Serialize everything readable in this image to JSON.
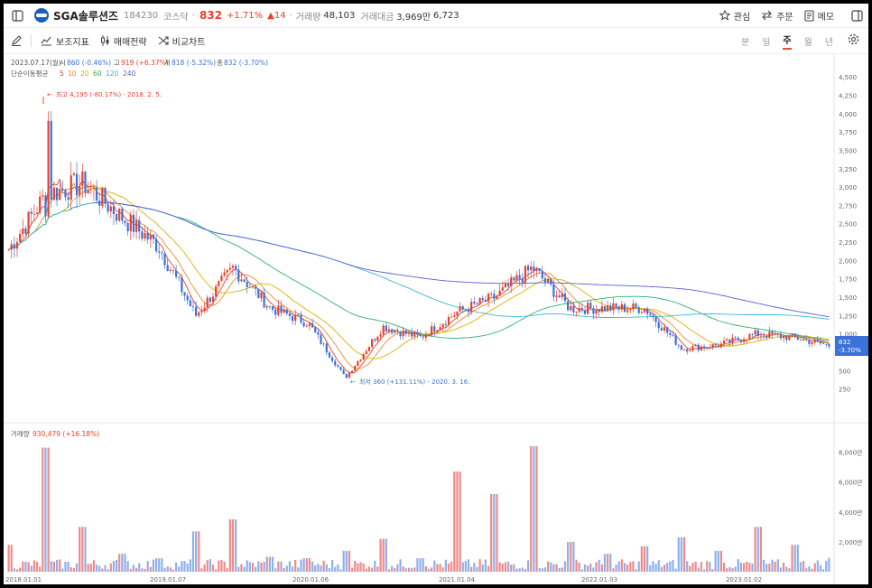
{
  "header": {
    "stock_name": "SGA솔루션즈",
    "code": "184230",
    "market": "코스닥",
    "price": "832",
    "change_pct": "+1.71%",
    "change_abs": "▲14",
    "volume_label": "거래량",
    "volume": "48,103",
    "amount_label": "거래대금",
    "amount": "3,969만",
    "extra": "6,723",
    "watch_label": "관심",
    "order_label": "주문",
    "memo_label": "메모"
  },
  "toolbar": {
    "indicator_label": "보조지표",
    "strategy_label": "매매전략",
    "compare_label": "비교차트",
    "periods": [
      "분",
      "일",
      "주",
      "월",
      "년"
    ],
    "active_period": "주"
  },
  "info": {
    "date": "2023.07.17(월)",
    "open_label": "시",
    "open": "860 (-0.46%)",
    "high_label": "고",
    "high": "919 (+6.37%)",
    "low_label": "저",
    "low": "818 (-5.32%)",
    "close_label": "종",
    "close": "832 (-3.70%)",
    "ma_label": "단순이동평균",
    "ma": [
      {
        "v": "5",
        "color": "#e8412c"
      },
      {
        "v": "10",
        "color": "#f08a24"
      },
      {
        "v": "20",
        "color": "#d8b400"
      },
      {
        "v": "60",
        "color": "#2fb36b"
      },
      {
        "v": "120",
        "color": "#37b7d8"
      },
      {
        "v": "240",
        "color": "#5b5fd6"
      }
    ]
  },
  "annotations": {
    "high": "최고 4,195 (-80.17%) - 2018. 2. 5.",
    "low": "최저 360 (+131.11%) - 2020. 3. 16.",
    "price_tag": "832",
    "price_tag_pct": "-3.70%"
  },
  "volume_info": {
    "label": "거래량",
    "value": "930,479 (+16.18%)"
  },
  "chart_data": [
    {
      "type": "line",
      "title": "",
      "y_ticks": [
        "4,500",
        "4,250",
        "4,000",
        "3,750",
        "3,500",
        "3,250",
        "3,000",
        "2,750",
        "2,500",
        "2,250",
        "2,000",
        "1,750",
        "1,500",
        "1,250",
        "1,000",
        "750",
        "500",
        "250"
      ],
      "x_ticks": [
        "2018.01.01",
        "2019.01.07",
        "2020.01.06",
        "2021.01.04",
        "2022.01.03",
        "2023.01.02"
      ],
      "x": [
        "2018.01",
        "2018.02",
        "2018.04",
        "2018.06",
        "2018.09",
        "2019.01",
        "2019.05",
        "2019.09",
        "2020.01",
        "2020.03",
        "2020.06",
        "2020.10",
        "2021.01",
        "2021.04",
        "2021.06",
        "2021.09",
        "2022.01",
        "2022.04",
        "2022.07",
        "2022.10",
        "2023.01",
        "2023.04",
        "2023.07"
      ],
      "series": [
        {
          "values": [
            2150,
            2900,
            3050,
            2600,
            2200,
            1250,
            1900,
            1350,
            1150,
            400,
            1100,
            950,
            1300,
            1500,
            1900,
            1350,
            1350,
            1350,
            800,
            850,
            1000,
            950,
            832
          ]
        }
      ],
      "ylim": [
        0,
        4600
      ]
    },
    {
      "type": "bar",
      "title": "",
      "y_ticks": [
        "8,000만",
        "6,000만",
        "4,000만",
        "2,000만"
      ],
      "x": [
        "2018.01",
        "2018.02",
        "2018.04",
        "2018.06",
        "2018.09",
        "2019.01",
        "2019.05",
        "2019.09",
        "2020.01",
        "2020.03",
        "2020.06",
        "2020.10",
        "2021.01",
        "2021.04",
        "2021.06",
        "2021.09",
        "2022.01",
        "2022.04",
        "2022.07",
        "2022.10",
        "2023.01",
        "2023.04",
        "2023.07"
      ],
      "values": [
        1800,
        8300,
        3000,
        1200,
        900,
        2700,
        3500,
        1000,
        900,
        1400,
        2200,
        900,
        6700,
        5200,
        8400,
        2000,
        1200,
        1700,
        2300,
        1400,
        3000,
        1800,
        930
      ]
    }
  ]
}
